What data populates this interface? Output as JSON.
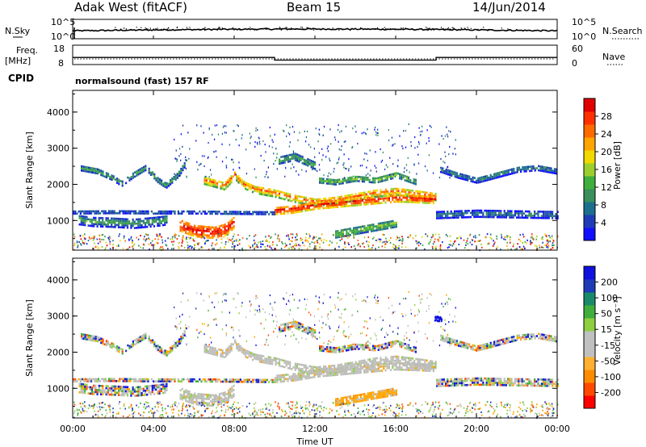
{
  "header": {
    "station": "Adak West (fitACF)",
    "beam": "Beam 15",
    "date": "14/Jun/2014"
  },
  "labels": {
    "nsky": "N.Sky",
    "nsearch": "N.Search",
    "freq": "Freq.",
    "mhz": "[MHz]",
    "nave": "Nave",
    "cpid": "CPID",
    "cpid_text": "normalsound (fast) 157 RF"
  },
  "noise_panel": {
    "tick_hi": "10^5",
    "tick_lo": "10^0",
    "right_tick_hi": "10^5",
    "right_tick_lo": "10^0"
  },
  "freq_panel": {
    "ticks_left": [
      "18",
      "8"
    ],
    "ticks_right": [
      "60",
      "0"
    ],
    "freq_steps": [
      {
        "t0": 0,
        "t1": 10,
        "value": 12
      },
      {
        "t0": 10,
        "t1": 18,
        "value": 10.5
      },
      {
        "t0": 18,
        "t1": 24,
        "value": 12
      }
    ]
  },
  "chart_data": [
    {
      "type": "heatmap",
      "name": "power",
      "ylabel": "Slant Range [km]",
      "xlabel": "",
      "x_ticks": [
        "00:00",
        "04:00",
        "08:00",
        "12:00",
        "16:00",
        "20:00",
        "00:00"
      ],
      "y_ticks": [
        "1000",
        "2000",
        "3000",
        "4000"
      ],
      "xlim": [
        0,
        24
      ],
      "ylim": [
        180,
        4600
      ],
      "colorbar": {
        "label": "Power [dB]",
        "ticks": [
          "28",
          "24",
          "20",
          "16",
          "12",
          "8",
          "4"
        ],
        "colors": [
          "#1010ff",
          "#1e3bb8",
          "#1d6f8e",
          "#3a8f5c",
          "#3fae3c",
          "#9ccf2c",
          "#f0d800",
          "#ffa500",
          "#ff6a00",
          "#ff3000",
          "#e00000"
        ]
      }
    },
    {
      "type": "heatmap",
      "name": "velocity",
      "ylabel": "Slant Range [km]",
      "xlabel": "Time UT",
      "x_ticks": [
        "00:00",
        "04:00",
        "08:00",
        "12:00",
        "16:00",
        "20:00",
        "00:00"
      ],
      "y_ticks": [
        "1000",
        "2000",
        "3000",
        "4000"
      ],
      "xlim": [
        0,
        24
      ],
      "ylim": [
        180,
        4600
      ],
      "colorbar": {
        "label": "Velocity [m s⁻¹]",
        "ticks": [
          "200",
          "100",
          "50",
          "15",
          "-15",
          "-50",
          "-100",
          "-200"
        ],
        "colors": [
          "#ff0000",
          "#ff4a00",
          "#ff8c00",
          "#ffb030",
          "#c0c0c0",
          "#c0c0c0",
          "#8cd040",
          "#3fae3c",
          "#1a8a6a",
          "#1e3bb8",
          "#1010e0"
        ]
      }
    }
  ],
  "colors": {
    "ground_scatter": "#bdbdb8",
    "ink": "#000000"
  }
}
